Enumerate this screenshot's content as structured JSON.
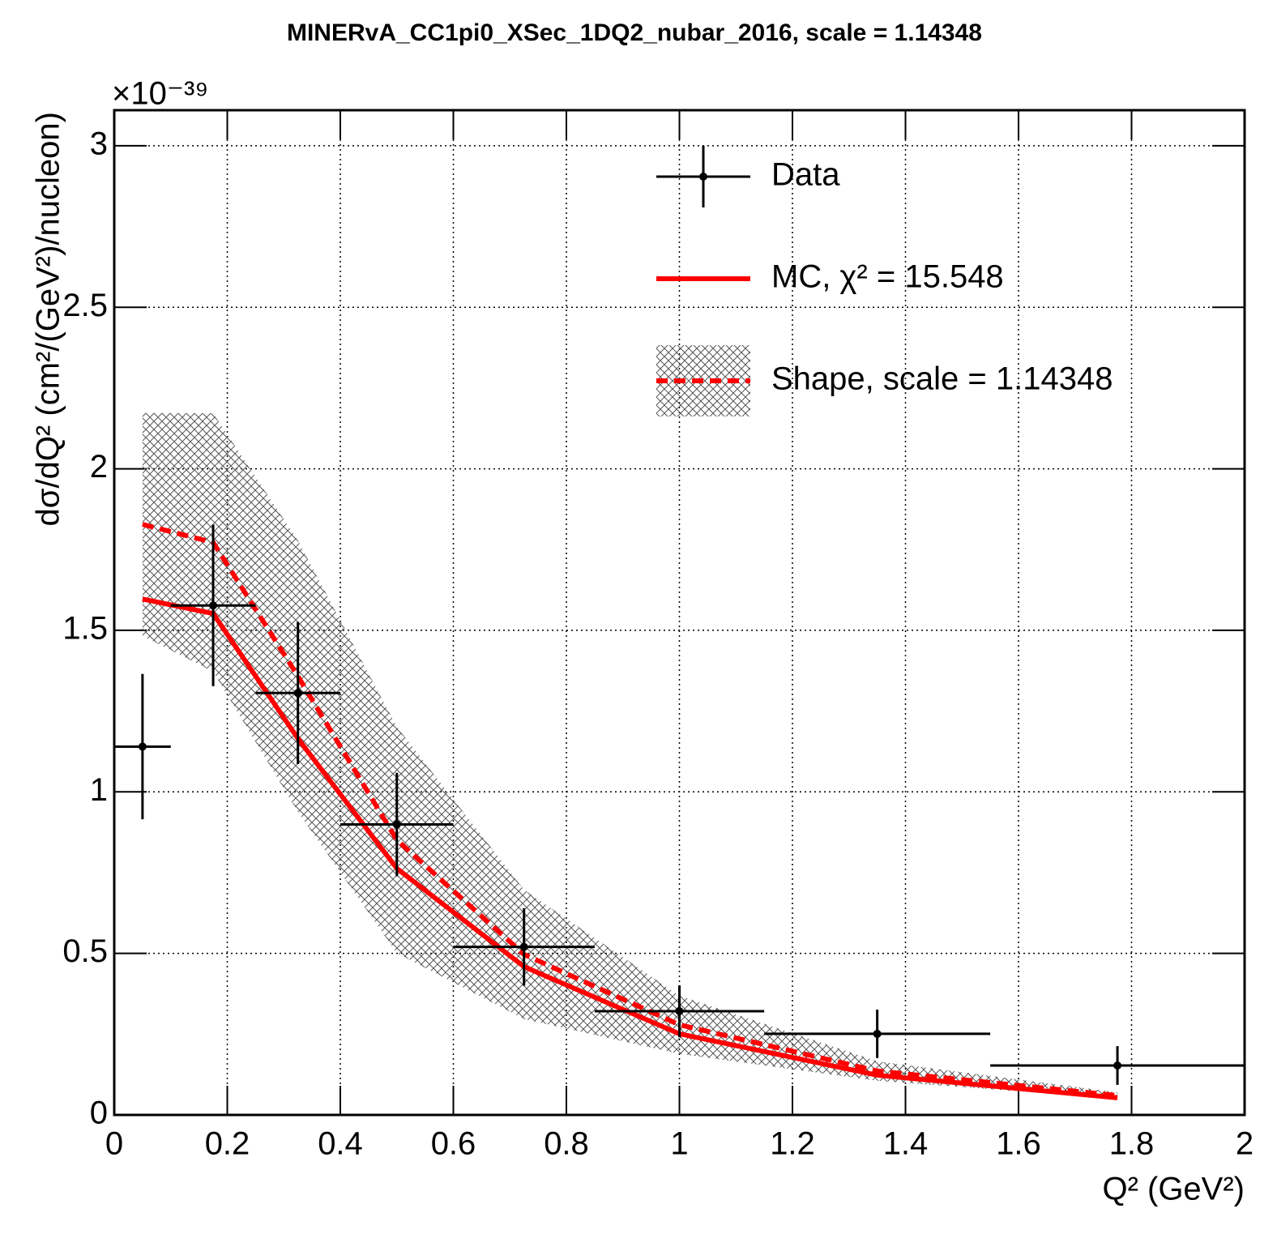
{
  "chart_data": {
    "type": "errorbar",
    "title": "MINERvA_CC1pi0_XSec_1DQ2_nubar_2016, scale = 1.14348",
    "x_label": "Q² (GeV²)",
    "y_label": "dσ/dQ² (cm²/(GeV²)/nucleon)",
    "y_exponent": "×10⁻³⁹",
    "xlim": [
      0,
      2
    ],
    "ylim": [
      0,
      3.11
    ],
    "xticks": [
      0,
      0.2,
      0.4,
      0.6,
      0.8,
      1,
      1.2,
      1.4,
      1.6,
      1.8,
      2
    ],
    "yticks": [
      0,
      0.5,
      1,
      1.5,
      2,
      2.5,
      3
    ],
    "grid": true,
    "legend": "top-right",
    "series": [
      {
        "name": "Data",
        "kind": "points",
        "color": "#000000",
        "x": [
          0.05,
          0.175,
          0.325,
          0.5,
          0.725,
          1.0,
          1.35,
          1.775
        ],
        "x_errors": [
          0.05,
          0.075,
          0.075,
          0.1,
          0.125,
          0.15,
          0.2,
          0.225
        ],
        "values": [
          1.14,
          1.577,
          1.306,
          0.899,
          0.52,
          0.321,
          0.251,
          0.153
        ],
        "y_errors": [
          0.225,
          0.25,
          0.22,
          0.16,
          0.12,
          0.08,
          0.075,
          0.06
        ]
      },
      {
        "name": "MC, χ² = 15.548",
        "kind": "line",
        "color": "#ff0000",
        "dashed": false,
        "x": [
          0.05,
          0.175,
          0.325,
          0.5,
          0.725,
          1.0,
          1.35,
          1.775
        ],
        "values": [
          1.597,
          1.552,
          1.165,
          0.763,
          0.459,
          0.251,
          0.123,
          0.053
        ]
      },
      {
        "name": "Shape, scale = 1.14348",
        "kind": "band",
        "color": "#ff0000",
        "dashed": true,
        "x": [
          0.05,
          0.175,
          0.325,
          0.5,
          0.725,
          1.0,
          1.35,
          1.775
        ],
        "values": [
          1.828,
          1.772,
          1.358,
          0.851,
          0.497,
          0.279,
          0.136,
          0.06
        ],
        "errors": [
          0.345,
          0.4,
          0.42,
          0.35,
          0.2,
          0.09,
          0.03,
          0.01
        ]
      }
    ]
  }
}
